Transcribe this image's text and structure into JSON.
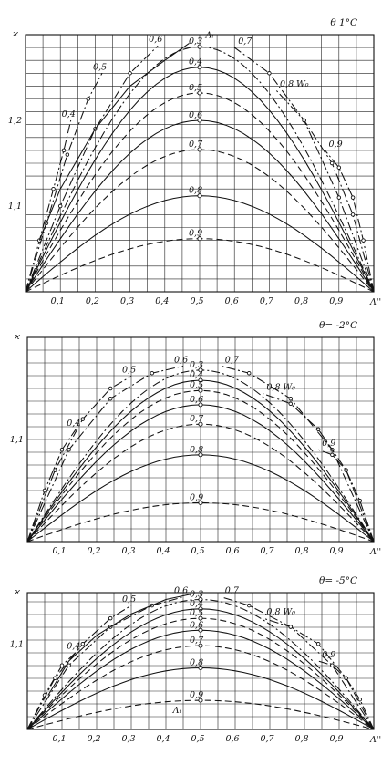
{
  "chart_data": [
    {
      "type": "line",
      "title": "θ  1°C",
      "ylabel": "ϰ",
      "xlabel": "Λ''",
      "xlim": [
        0,
        1
      ],
      "ylim": [
        1.0,
        1.3
      ],
      "x_ticks": [
        "0,1",
        "0,2",
        "0,3",
        "0,4",
        "0,5",
        "0,6",
        "0,7",
        "0,8",
        "0,9"
      ],
      "y_ticks": [
        {
          "v": 1.1,
          "label": "1,1"
        },
        {
          "v": 1.2,
          "label": "1,2"
        }
      ],
      "grid": true,
      "wo_label": "W₀",
      "li_label": "Λᵢ",
      "series": [
        {
          "name": "0,3",
          "peak_x": 0.5,
          "peak": 1.286,
          "style": "dashdot"
        },
        {
          "name": "0,4",
          "peak_x": 0.5,
          "peak": 1.262,
          "style": "solid"
        },
        {
          "name": "0,5",
          "peak_x": 0.5,
          "peak": 1.232,
          "style": "dashed"
        },
        {
          "name": "0,6",
          "peak_x": 0.5,
          "peak": 1.2,
          "style": "solid"
        },
        {
          "name": "0,7",
          "peak_x": 0.5,
          "peak": 1.166,
          "style": "dashed"
        },
        {
          "name": "0,8",
          "peak_x": 0.5,
          "peak": 1.112,
          "style": "solid"
        },
        {
          "name": "0,9",
          "peak_x": 0.5,
          "peak": 1.062,
          "style": "dashed"
        }
      ],
      "w_lines": [
        {
          "name": "0,4",
          "pts": [
            [
              0.0,
              1.0
            ],
            [
              0.04,
              1.06
            ],
            [
              0.08,
              1.12
            ],
            [
              0.11,
              1.165
            ],
            [
              0.13,
              1.2
            ]
          ]
        },
        {
          "name": "0,5",
          "pts": [
            [
              0.0,
              1.0
            ],
            [
              0.06,
              1.08
            ],
            [
              0.12,
              1.16
            ],
            [
              0.18,
              1.225
            ],
            [
              0.22,
              1.255
            ]
          ]
        },
        {
          "name": "0,6",
          "pts": [
            [
              0.0,
              1.0
            ],
            [
              0.1,
              1.1
            ],
            [
              0.2,
              1.19
            ],
            [
              0.3,
              1.255
            ],
            [
              0.38,
              1.287
            ]
          ]
        },
        {
          "name": "0,7",
          "pts": [
            [
              1.0,
              1.0
            ],
            [
              0.9,
              1.11
            ],
            [
              0.8,
              1.2
            ],
            [
              0.7,
              1.255
            ],
            [
              0.6,
              1.285
            ]
          ]
        },
        {
          "name": "0,8",
          "pts": [
            [
              1.0,
              1.0
            ],
            [
              0.94,
              1.09
            ],
            [
              0.88,
              1.15
            ],
            [
              0.8,
              1.2
            ],
            [
              0.72,
              1.235
            ]
          ]
        },
        {
          "name": "0,9",
          "pts": [
            [
              1.0,
              1.0
            ],
            [
              0.97,
              1.06
            ],
            [
              0.94,
              1.11
            ],
            [
              0.9,
              1.145
            ],
            [
              0.86,
              1.165
            ]
          ]
        }
      ],
      "li_line": {
        "pts": [
          [
            0.04,
            1.06
          ],
          [
            0.1,
            1.12
          ],
          [
            0.2,
            1.19
          ],
          [
            0.3,
            1.24
          ],
          [
            0.4,
            1.27
          ],
          [
            0.47,
            1.29
          ]
        ]
      }
    },
    {
      "type": "line",
      "title": "θ= -2°C",
      "ylabel": "ϰ",
      "xlabel": "Λ''",
      "xlim": [
        0,
        1
      ],
      "ylim": [
        1.0,
        1.2
      ],
      "x_ticks": [
        "0,1",
        "0,2",
        "0,3",
        "0,4",
        "0,5",
        "0,6",
        "0,7",
        "0,8",
        "0,9"
      ],
      "y_ticks": [
        {
          "v": 1.1,
          "label": "1,1"
        }
      ],
      "grid": true,
      "wo_label": "W₀",
      "series": [
        {
          "name": "0,3",
          "peak_x": 0.5,
          "peak": 1.168,
          "style": "dashdot"
        },
        {
          "name": "0,4",
          "peak_x": 0.5,
          "peak": 1.158,
          "style": "solid"
        },
        {
          "name": "0,5",
          "peak_x": 0.5,
          "peak": 1.148,
          "style": "dashed"
        },
        {
          "name": "0,6",
          "peak_x": 0.5,
          "peak": 1.134,
          "style": "solid"
        },
        {
          "name": "0,7",
          "peak_x": 0.5,
          "peak": 1.115,
          "style": "dashed"
        },
        {
          "name": "0,8",
          "peak_x": 0.5,
          "peak": 1.085,
          "style": "solid"
        },
        {
          "name": "0,9",
          "peak_x": 0.5,
          "peak": 1.038,
          "style": "dashed"
        }
      ],
      "w_lines": [
        {
          "name": "0,4",
          "pts": [
            [
              0.0,
              1.0
            ],
            [
              0.05,
              1.05
            ],
            [
              0.1,
              1.09
            ],
            [
              0.14,
              1.11
            ]
          ]
        },
        {
          "name": "0,5",
          "pts": [
            [
              0.0,
              1.0
            ],
            [
              0.08,
              1.07
            ],
            [
              0.16,
              1.12
            ],
            [
              0.24,
              1.15
            ],
            [
              0.3,
              1.162
            ]
          ]
        },
        {
          "name": "0,6",
          "pts": [
            [
              0.0,
              1.0
            ],
            [
              0.12,
              1.09
            ],
            [
              0.24,
              1.14
            ],
            [
              0.36,
              1.165
            ],
            [
              0.45,
              1.172
            ]
          ]
        },
        {
          "name": "0,7",
          "pts": [
            [
              1.0,
              1.0
            ],
            [
              0.88,
              1.09
            ],
            [
              0.76,
              1.14
            ],
            [
              0.64,
              1.165
            ],
            [
              0.56,
              1.172
            ]
          ]
        },
        {
          "name": "0,8",
          "pts": [
            [
              1.0,
              1.0
            ],
            [
              0.92,
              1.07
            ],
            [
              0.84,
              1.11
            ],
            [
              0.76,
              1.135
            ],
            [
              0.68,
              1.145
            ]
          ]
        },
        {
          "name": "0,9",
          "pts": [
            [
              1.0,
              1.0
            ],
            [
              0.96,
              1.04
            ],
            [
              0.92,
              1.07
            ],
            [
              0.88,
              1.085
            ],
            [
              0.84,
              1.09
            ]
          ]
        }
      ]
    },
    {
      "type": "line",
      "title": "θ= -5°C",
      "ylabel": "ϰ",
      "xlabel": "Λ''",
      "xlim": [
        0,
        1
      ],
      "ylim": [
        1.0,
        1.16
      ],
      "x_ticks": [
        "0,1",
        "0,2",
        "0,3",
        "0,4",
        "0,5",
        "0,6",
        "0,7",
        "0,8",
        "0,9"
      ],
      "y_ticks": [
        {
          "v": 1.1,
          "label": "1,1"
        }
      ],
      "grid": true,
      "wo_label": "W₀",
      "li_label": "Λᵢ",
      "series": [
        {
          "name": "0,3",
          "peak_x": 0.5,
          "peak": 1.152,
          "style": "dashdot"
        },
        {
          "name": "0,4",
          "peak_x": 0.5,
          "peak": 1.141,
          "style": "solid"
        },
        {
          "name": "0,5",
          "peak_x": 0.5,
          "peak": 1.13,
          "style": "dashed"
        },
        {
          "name": "0,6",
          "peak_x": 0.5,
          "peak": 1.116,
          "style": "solid"
        },
        {
          "name": "0,7",
          "peak_x": 0.5,
          "peak": 1.098,
          "style": "dashed"
        },
        {
          "name": "0,8",
          "peak_x": 0.5,
          "peak": 1.072,
          "style": "solid"
        },
        {
          "name": "0,9",
          "peak_x": 0.5,
          "peak": 1.034,
          "style": "dashed"
        }
      ],
      "w_lines": [
        {
          "name": "0,4",
          "pts": [
            [
              0.0,
              1.0
            ],
            [
              0.05,
              1.04
            ],
            [
              0.1,
              1.075
            ],
            [
              0.14,
              1.09
            ]
          ]
        },
        {
          "name": "0,5",
          "pts": [
            [
              0.0,
              1.0
            ],
            [
              0.08,
              1.06
            ],
            [
              0.16,
              1.1
            ],
            [
              0.24,
              1.13
            ],
            [
              0.3,
              1.145
            ]
          ]
        },
        {
          "name": "0,6",
          "pts": [
            [
              0.0,
              1.0
            ],
            [
              0.12,
              1.075
            ],
            [
              0.24,
              1.12
            ],
            [
              0.36,
              1.145
            ],
            [
              0.45,
              1.155
            ]
          ]
        },
        {
          "name": "0,7",
          "pts": [
            [
              1.0,
              1.0
            ],
            [
              0.88,
              1.075
            ],
            [
              0.76,
              1.12
            ],
            [
              0.64,
              1.145
            ],
            [
              0.56,
              1.155
            ]
          ]
        },
        {
          "name": "0,8",
          "pts": [
            [
              1.0,
              1.0
            ],
            [
              0.92,
              1.06
            ],
            [
              0.84,
              1.1
            ],
            [
              0.76,
              1.12
            ],
            [
              0.68,
              1.13
            ]
          ]
        },
        {
          "name": "0,9",
          "pts": [
            [
              1.0,
              1.0
            ],
            [
              0.96,
              1.035
            ],
            [
              0.92,
              1.06
            ],
            [
              0.88,
              1.075
            ],
            [
              0.84,
              1.08
            ]
          ]
        }
      ],
      "li_line": {
        "pts": [
          [
            0.06,
            1.04
          ],
          [
            0.12,
            1.08
          ],
          [
            0.2,
            1.11
          ],
          [
            0.3,
            1.135
          ],
          [
            0.4,
            1.152
          ],
          [
            0.47,
            1.158
          ]
        ]
      }
    }
  ]
}
